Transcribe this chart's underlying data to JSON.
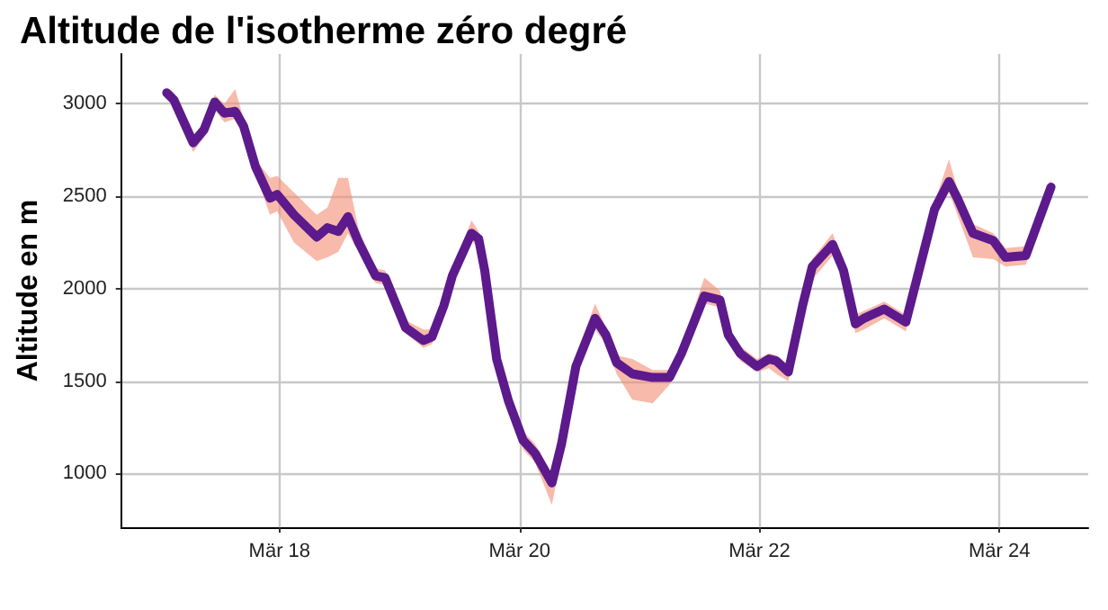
{
  "chart_data": {
    "type": "line",
    "title": "Altitude de l'isotherme zéro degré",
    "ylabel": "Altitude en m",
    "x": [
      "--03-17T01:26",
      "--03-17T02:53",
      "--03-17T06:43",
      "--03-17T08:53",
      "--03-17T11:02",
      "--03-17T12:58",
      "--03-17T15:07",
      "--03-17T16:48",
      "--03-17T19:12",
      "--03-17T22:05",
      "--03-17T23:31",
      "--03-18T02:53",
      "--03-18T07:26",
      "--03-18T09:36",
      "--03-18T11:46",
      "--03-18T13:41",
      "--03-18T15:50",
      "--03-18T19:12",
      "--03-18T21:07",
      "--03-19T01:12",
      "--03-19T04:48",
      "--03-19T06:29",
      "--03-19T08:53",
      "--03-19T10:34",
      "--03-19T14:24",
      "--03-19T15:50",
      "--03-19T17:02",
      "--03-19T19:26",
      "--03-19T21:50",
      "--03-20T00:43",
      "--03-20T03:07",
      "--03-20T06:29",
      "--03-20T08:24",
      "--03-20T11:17",
      "--03-20T15:07",
      "--03-20T17:17",
      "--03-20T19:26",
      "--03-20T22:34",
      "--03-21T02:38",
      "--03-21T06:00",
      "--03-21T08:24",
      "--03-21T12:58",
      "--03-21T16:05",
      "--03-21T17:46",
      "--03-21T20:10",
      "--03-21T23:31",
      "--03-22T01:55",
      "--03-22T03:22",
      "--03-22T05:46",
      "--03-22T08:38",
      "--03-22T10:34",
      "--03-22T14:38",
      "--03-22T16:48",
      "--03-22T19:12",
      "--03-22T20:53",
      "--03-23T00:58",
      "--03-23T05:17",
      "--03-23T11:02",
      "--03-23T13:55",
      "--03-23T15:36",
      "--03-23T18:43",
      "--03-23T22:48",
      "--03-24T01:12",
      "--03-24T05:17",
      "--03-24T10:19"
    ],
    "series": [
      {
        "color": "#5c1a8c",
        "values": [
          3060,
          3020,
          2790,
          2860,
          3010,
          2950,
          2960,
          2880,
          2660,
          2490,
          2510,
          2400,
          2280,
          2330,
          2310,
          2390,
          2250,
          2070,
          2060,
          1790,
          1720,
          1740,
          1910,
          2070,
          2300,
          2270,
          2100,
          1620,
          1390,
          1180,
          1110,
          950,
          1160,
          1580,
          1840,
          1750,
          1600,
          1540,
          1520,
          1520,
          1650,
          1960,
          1940,
          1750,
          1650,
          1580,
          1620,
          1610,
          1550,
          1910,
          2120,
          2240,
          2100,
          1810,
          1840,
          1890,
          1820,
          2430,
          2580,
          2490,
          2300,
          2260,
          2170,
          2180,
          2550
        ],
        "lower": [
          3030,
          2980,
          2740,
          2820,
          2970,
          2900,
          2920,
          2840,
          2620,
          2400,
          2420,
          2250,
          2150,
          2170,
          2200,
          2300,
          2200,
          2030,
          2020,
          1760,
          1680,
          1700,
          1870,
          2030,
          2260,
          2220,
          2060,
          1580,
          1350,
          1130,
          1060,
          830,
          1100,
          1540,
          1780,
          1700,
          1540,
          1400,
          1380,
          1480,
          1610,
          1920,
          1900,
          1710,
          1610,
          1550,
          1570,
          1540,
          1500,
          1860,
          2050,
          2180,
          2060,
          1760,
          1780,
          1840,
          1770,
          2390,
          2520,
          2400,
          2170,
          2160,
          2120,
          2130,
          2510
        ],
        "upper": [
          3090,
          3060,
          2830,
          2900,
          3050,
          3000,
          3080,
          2920,
          2700,
          2600,
          2610,
          2520,
          2400,
          2440,
          2600,
          2600,
          2320,
          2110,
          2100,
          1830,
          1780,
          1780,
          1950,
          2110,
          2370,
          2310,
          2170,
          1700,
          1450,
          1230,
          1160,
          1000,
          1250,
          1640,
          1920,
          1790,
          1640,
          1620,
          1560,
          1560,
          1690,
          2060,
          1990,
          1790,
          1690,
          1620,
          1650,
          1640,
          1590,
          1950,
          2160,
          2300,
          2140,
          1860,
          1880,
          1930,
          1860,
          2470,
          2700,
          2540,
          2350,
          2300,
          2220,
          2230,
          2590
        ]
      }
    ],
    "xlim": [
      "--03-16T16:19",
      "--03-24T17:46"
    ],
    "xticks": [
      {
        "value": "--03-18",
        "label": "Mär 18"
      },
      {
        "value": "--03-20",
        "label": "Mär 20"
      },
      {
        "value": "--03-22",
        "label": "Mär 22"
      },
      {
        "value": "--03-24",
        "label": "Mär 24"
      }
    ],
    "ylim": [
      710,
      3270
    ],
    "yticks": [
      1000,
      1500,
      2000,
      2500,
      3000
    ],
    "grid": true,
    "marker": "none",
    "line_style": "solid"
  }
}
